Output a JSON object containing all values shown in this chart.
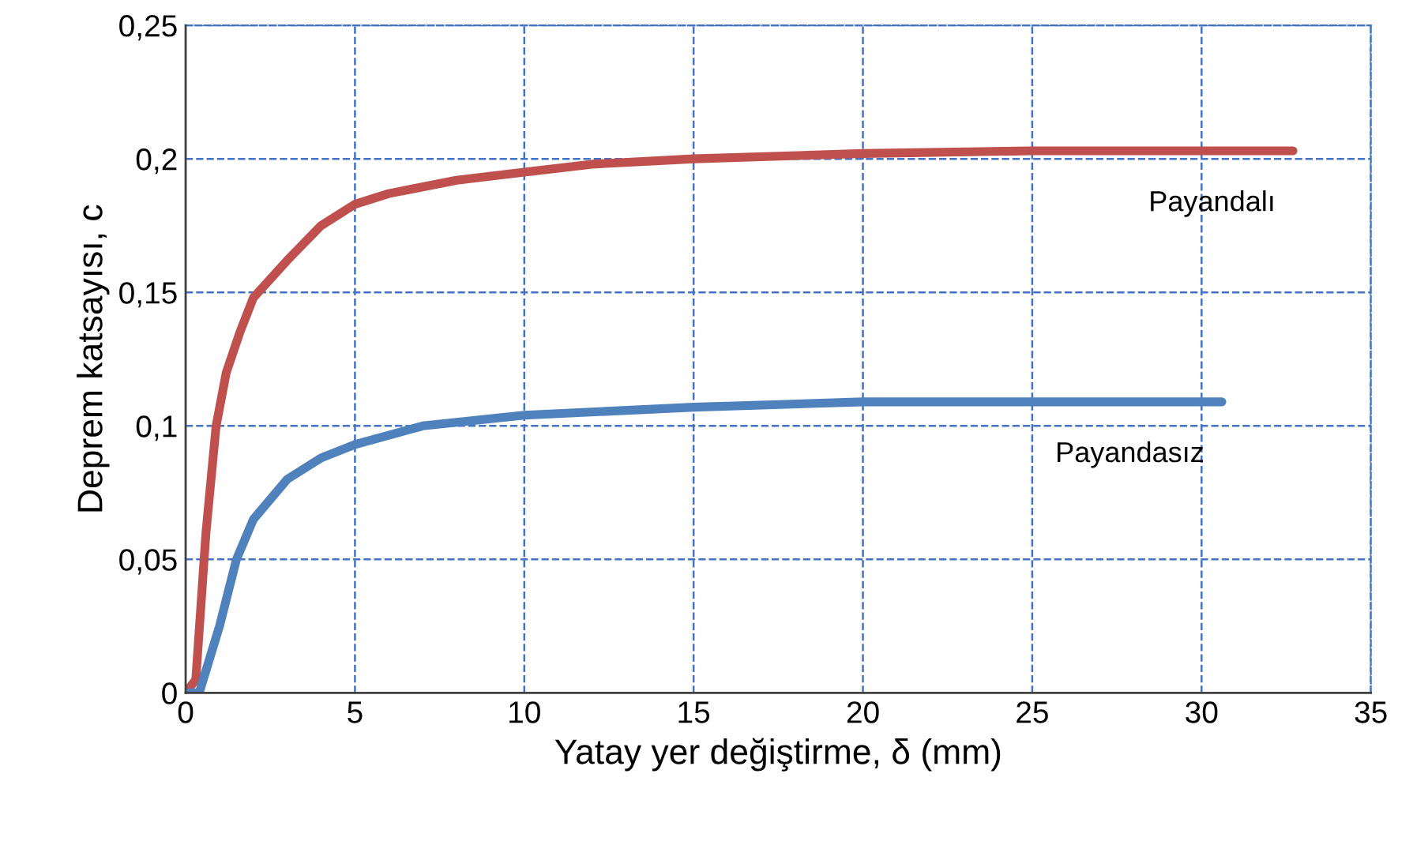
{
  "chart_data": {
    "type": "line",
    "xlabel": "Yatay yer değiştirme, δ (mm)",
    "ylabel": "Deprem katsayısı, c",
    "xlim": [
      0,
      35
    ],
    "xticks": [
      0,
      5,
      10,
      15,
      20,
      25,
      30,
      35
    ],
    "ylim": [
      0,
      0.25
    ],
    "yticks": [
      {
        "value": 0,
        "label": "0"
      },
      {
        "value": 0.05,
        "label": "0,05"
      },
      {
        "value": 0.1,
        "label": "0,1"
      },
      {
        "value": 0.15,
        "label": "0,15"
      },
      {
        "value": 0.2,
        "label": "0,2"
      },
      {
        "value": 0.25,
        "label": "0,25"
      }
    ],
    "grid": true,
    "legend": false,
    "marker": "none",
    "line_style": "solid",
    "series": [
      {
        "name": "Payandalı",
        "color": "#c0504d",
        "x": [
          0,
          0.3,
          0.6,
          0.9,
          1.2,
          1.6,
          2,
          3,
          4,
          5,
          6,
          8,
          10,
          12,
          15,
          20,
          25,
          32.7
        ],
        "values": [
          0,
          0.005,
          0.06,
          0.1,
          0.12,
          0.135,
          0.148,
          0.162,
          0.175,
          0.183,
          0.187,
          0.192,
          0.195,
          0.198,
          0.2,
          0.202,
          0.203,
          0.203
        ]
      },
      {
        "name": "Payandasız",
        "color": "#4f81bd",
        "x": [
          0,
          0.4,
          1,
          1.5,
          2,
          3,
          4,
          5,
          7,
          10,
          15,
          20,
          25,
          30.6
        ],
        "values": [
          0,
          0,
          0.025,
          0.05,
          0.065,
          0.08,
          0.088,
          0.093,
          0.1,
          0.104,
          0.107,
          0.109,
          0.109,
          0.109
        ]
      }
    ]
  }
}
